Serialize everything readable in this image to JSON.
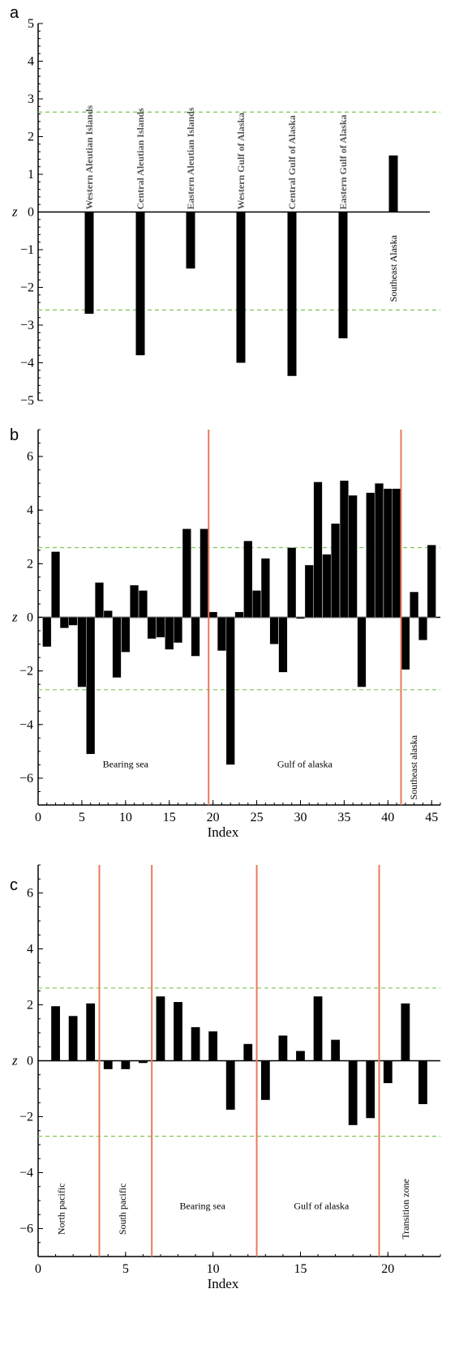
{
  "chart_data": [
    {
      "panel": "a",
      "type": "bar",
      "ylabel": "z",
      "xlabel": "",
      "ylim": [
        -5,
        5
      ],
      "yticks": [
        -5,
        -4,
        -3,
        -2,
        -1,
        0,
        1,
        2,
        3,
        4,
        5
      ],
      "threshold_lines": [
        2.65,
        -2.6
      ],
      "categories": [
        "Western Aleutian Islands",
        "Central Aleutian Islands",
        "Eastern Aleutian Islands",
        "Western Gulf of Alaska",
        "Central Gulf of Alaska",
        "Eastern Gulf of Alaska",
        "Southeast Alaska"
      ],
      "values": [
        -2.7,
        -3.8,
        -1.5,
        -4.0,
        -4.35,
        -3.35,
        1.5
      ]
    },
    {
      "panel": "b",
      "type": "bar",
      "ylabel": "z",
      "xlabel": "Index",
      "xlim": [
        0,
        46
      ],
      "ylim": [
        -7,
        7
      ],
      "xticks": [
        0,
        5,
        10,
        15,
        20,
        25,
        30,
        35,
        40,
        45
      ],
      "yticks": [
        -6,
        -4,
        -2,
        0,
        2,
        4,
        6
      ],
      "threshold_lines": [
        2.6,
        -2.7
      ],
      "region_dividers": [
        19.5,
        41.5
      ],
      "regions": [
        "Bearing sea",
        "Gulf of alaska",
        "Southeast alaska"
      ],
      "x": [
        1,
        2,
        3,
        4,
        5,
        6,
        7,
        8,
        9,
        10,
        11,
        12,
        13,
        14,
        15,
        16,
        17,
        18,
        19,
        20,
        21,
        22,
        23,
        24,
        25,
        26,
        27,
        28,
        29,
        30,
        31,
        32,
        33,
        34,
        35,
        36,
        37,
        38,
        39,
        40,
        41,
        42,
        43,
        44,
        45
      ],
      "values": [
        -1.1,
        2.45,
        -0.4,
        -0.3,
        -2.6,
        -5.1,
        1.3,
        0.25,
        -2.25,
        -1.3,
        1.2,
        1.0,
        -0.8,
        -0.75,
        -1.2,
        -0.95,
        3.3,
        -1.45,
        3.3,
        0.2,
        -1.25,
        -5.5,
        0.2,
        2.85,
        1.0,
        2.2,
        -1.0,
        -2.05,
        2.6,
        -0.05,
        1.95,
        5.05,
        2.35,
        3.5,
        5.1,
        4.55,
        -2.6,
        4.65,
        5.0,
        4.8,
        4.8,
        -1.95,
        0.95,
        -0.85,
        2.7
      ]
    },
    {
      "panel": "c",
      "type": "bar",
      "ylabel": "z",
      "xlabel": "Index",
      "xlim": [
        0,
        23
      ],
      "ylim": [
        -7,
        7
      ],
      "xticks": [
        0,
        5,
        10,
        15,
        20
      ],
      "yticks": [
        -6,
        -4,
        -2,
        0,
        2,
        4,
        6
      ],
      "threshold_lines": [
        2.6,
        -2.7
      ],
      "region_dividers": [
        3.5,
        6.5,
        12.5,
        19.5
      ],
      "regions": [
        "North pacific",
        "South pacific",
        "Bearing sea",
        "Gulf of alaska",
        "Transition zone"
      ],
      "x": [
        1,
        2,
        3,
        4,
        5,
        6,
        7,
        8,
        9,
        10,
        11,
        12,
        13,
        14,
        15,
        16,
        17,
        18,
        19,
        20,
        21,
        22
      ],
      "values": [
        1.95,
        1.6,
        2.05,
        -0.3,
        -0.3,
        -0.08,
        2.3,
        2.1,
        1.2,
        1.05,
        -1.75,
        0.6,
        -1.4,
        0.9,
        0.35,
        2.3,
        0.75,
        -2.3,
        -2.05,
        -0.8,
        2.05,
        -1.55
      ]
    }
  ]
}
